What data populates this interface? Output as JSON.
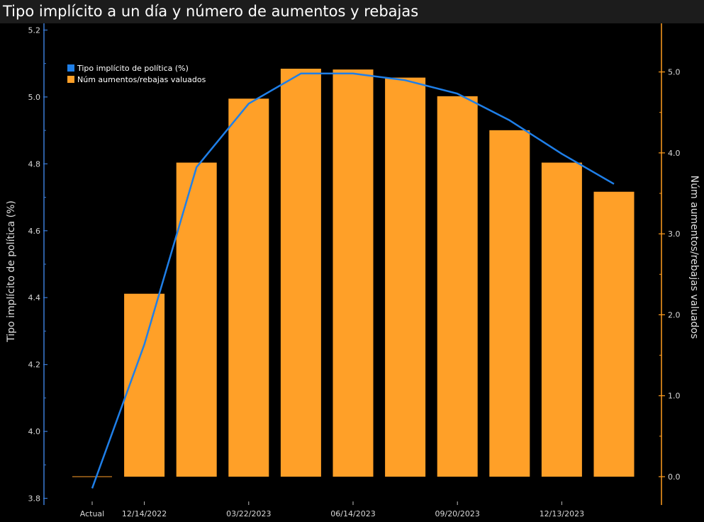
{
  "title": "Tipo implícito a un día y número de aumentos y rebajas",
  "colors": {
    "background": "#000000",
    "line": "#1f7fe8",
    "bar": "#ffa028",
    "left_axis": "#3a7bd5",
    "right_axis": "#ff9e1f",
    "title_bar": "#1c1c1c"
  },
  "chart_data": {
    "type": "bar+line",
    "title": "Tipo implícito a un día y número de aumentos y rebajas",
    "y_left_label": "Tipo implícito de política (%)",
    "y_right_label": "Núm aumentos/rebajas valuados",
    "y_left_lim": [
      3.78,
      5.22
    ],
    "y_right_lim": [
      -0.35,
      5.6
    ],
    "y_left_ticks": [
      "3.8",
      "4.0",
      "4.2",
      "4.4",
      "4.6",
      "4.8",
      "5.0",
      "5.2"
    ],
    "y_right_ticks": [
      "0.0",
      "1.0",
      "2.0",
      "3.0",
      "4.0",
      "5.0"
    ],
    "x_tick_labels": [
      "Actual",
      "12/14/2022",
      "03/22/2023",
      "06/14/2023",
      "09/20/2023",
      "12/13/2023"
    ],
    "legend": {
      "position": "top-left",
      "entries": [
        "Tipo implícito de política (%)",
        "Núm aumentos/rebajas valuados"
      ]
    },
    "series": [
      {
        "name": "Tipo implícito de política (%)",
        "type": "line",
        "axis": "left",
        "values": [
          3.83,
          4.26,
          4.79,
          4.98,
          5.07,
          5.07,
          5.05,
          5.01,
          4.93,
          4.83,
          4.74
        ]
      },
      {
        "name": "Núm aumentos/rebajas valuados",
        "type": "bar",
        "axis": "right",
        "values": [
          0.0,
          2.26,
          3.88,
          4.67,
          5.04,
          5.03,
          4.93,
          4.7,
          4.28,
          3.88,
          3.52
        ]
      }
    ]
  }
}
